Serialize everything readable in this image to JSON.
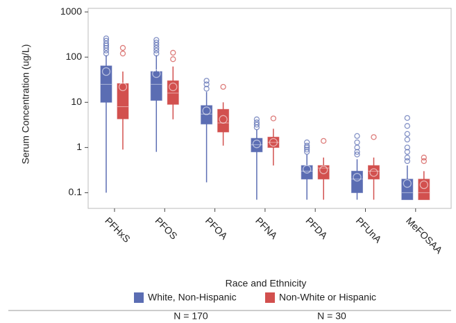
{
  "chart_data": {
    "type": "box",
    "y_label": "Serum Concentration (ug/L)",
    "y_scale": "log",
    "ylim": [
      0.045,
      1200
    ],
    "yticks": [
      0.1,
      1,
      10,
      100,
      1000
    ],
    "categories": [
      "PFHxS",
      "PFOS",
      "PFOA",
      "PFNA",
      "PFDA",
      "PFUnA",
      "MeFOSAA"
    ],
    "legend_title": "Race and Ethnicity",
    "series": [
      {
        "name": "White, Non-Hispanic",
        "color": "#5b6db3",
        "note": "N = 170",
        "stats": [
          {
            "low": 0.1,
            "q1": 10,
            "median": 25,
            "q3": 64,
            "high": 110,
            "mean": 48,
            "outliers": [
              120,
              140,
              160,
              180,
              200,
              230,
              260
            ]
          },
          {
            "low": 0.8,
            "q1": 11,
            "median": 25,
            "q3": 48,
            "high": 110,
            "mean": 43,
            "outliers": [
              120,
              140,
              160,
              185,
              210,
              240
            ]
          },
          {
            "low": 0.17,
            "q1": 3.3,
            "median": 5.5,
            "q3": 8.5,
            "high": 17,
            "mean": 6.5,
            "outliers": [
              20,
              25,
              30
            ]
          },
          {
            "low": 0.07,
            "q1": 0.8,
            "median": 1.15,
            "q3": 1.6,
            "high": 2.5,
            "mean": 1.2,
            "outliers": [
              2.8,
              3.2,
              3.6,
              4.2
            ]
          },
          {
            "low": 0.07,
            "q1": 0.2,
            "median": 0.3,
            "q3": 0.4,
            "high": 0.7,
            "mean": 0.33,
            "outliers": [
              0.8,
              0.9,
              1.0,
              1.1,
              1.3
            ]
          },
          {
            "low": 0.07,
            "q1": 0.1,
            "median": 0.2,
            "q3": 0.3,
            "high": 0.55,
            "mean": 0.22,
            "outliers": [
              0.7,
              0.8,
              1.0,
              1.3,
              1.8
            ]
          },
          {
            "low": 0.07,
            "q1": 0.07,
            "median": 0.1,
            "q3": 0.2,
            "high": 0.4,
            "mean": 0.16,
            "outliers": [
              0.5,
              0.6,
              0.8,
              1.0,
              1.5,
              2.0,
              3.0,
              4.5
            ]
          }
        ]
      },
      {
        "name": "Non-White or Hispanic",
        "color": "#d2504e",
        "note": "N = 30",
        "stats": [
          {
            "low": 0.9,
            "q1": 4.3,
            "median": 8,
            "q3": 26,
            "high": 48,
            "mean": 22,
            "outliers": [
              120,
              160
            ]
          },
          {
            "low": 4.2,
            "q1": 9,
            "median": 16,
            "q3": 30,
            "high": 62,
            "mean": 22,
            "outliers": [
              90,
              125
            ]
          },
          {
            "low": 1.1,
            "q1": 2.2,
            "median": 3.5,
            "q3": 7,
            "high": 10,
            "mean": 4.2,
            "outliers": [
              22
            ]
          },
          {
            "low": 0.4,
            "q1": 1.0,
            "median": 1.3,
            "q3": 1.7,
            "high": 2.6,
            "mean": 1.3,
            "outliers": [
              4.4
            ]
          },
          {
            "low": 0.07,
            "q1": 0.2,
            "median": 0.35,
            "q3": 0.4,
            "high": 0.6,
            "mean": 0.32,
            "outliers": [
              1.4
            ]
          },
          {
            "low": 0.07,
            "q1": 0.2,
            "median": 0.3,
            "q3": 0.4,
            "high": 0.6,
            "mean": 0.28,
            "outliers": [
              1.7
            ]
          },
          {
            "low": 0.07,
            "q1": 0.07,
            "median": 0.1,
            "q3": 0.2,
            "high": 0.3,
            "mean": 0.15,
            "outliers": [
              0.5,
              0.6
            ]
          }
        ]
      }
    ]
  }
}
